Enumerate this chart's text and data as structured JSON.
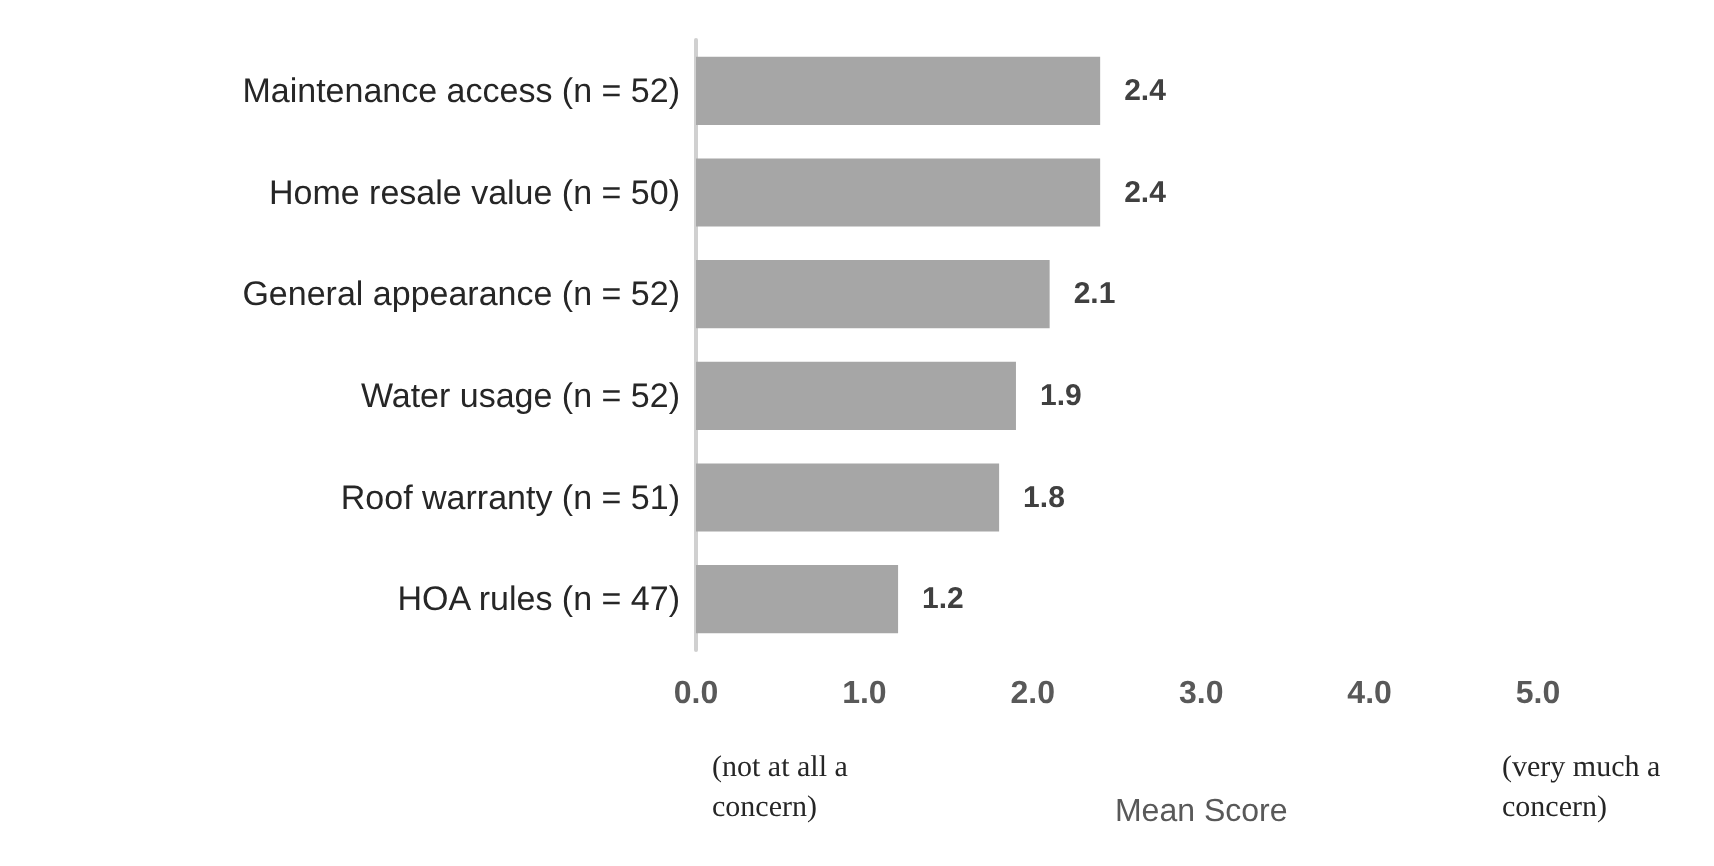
{
  "chart_data": {
    "type": "bar",
    "orientation": "horizontal",
    "categories": [
      "Maintenance access (n = 52)",
      "Home resale value (n = 50)",
      "General appearance (n = 52)",
      "Water usage (n = 52)",
      "Roof warranty (n = 51)",
      "HOA rules (n = 47)"
    ],
    "values": [
      2.4,
      2.4,
      2.1,
      1.9,
      1.8,
      1.2
    ],
    "color": "#a6a6a6",
    "data_labels": true,
    "xlim": [
      0,
      5
    ],
    "xticks": [
      {
        "value": 0,
        "label": "0.0"
      },
      {
        "value": 1,
        "label": "1.0"
      },
      {
        "value": 2,
        "label": "2.0"
      },
      {
        "value": 3,
        "label": "3.0"
      },
      {
        "value": 4,
        "label": "4.0"
      },
      {
        "value": 5,
        "label": "5.0"
      }
    ],
    "xlabel": "Mean Score",
    "grid": false,
    "annotations": [
      "(not at all a concern)",
      "(very much a concern)"
    ]
  }
}
